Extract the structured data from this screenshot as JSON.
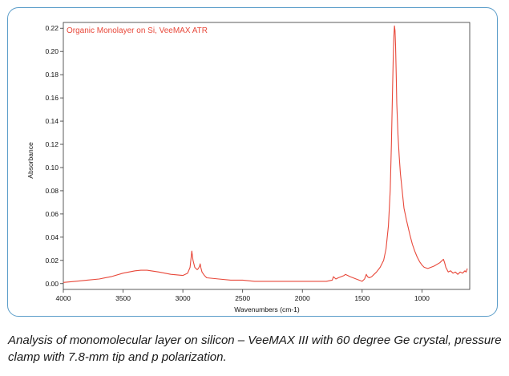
{
  "chart_data": {
    "type": "line",
    "title": "Organic Monolayer on Si, VeeMAX ATR",
    "xlabel": "Wavenumbers (cm-1)",
    "ylabel": "Absorbance",
    "xlim": [
      4000,
      600
    ],
    "ylim": [
      -0.005,
      0.225
    ],
    "x_ticks": [
      4000,
      3500,
      3000,
      2500,
      2000,
      1500,
      1000
    ],
    "y_ticks": [
      0.0,
      0.02,
      0.04,
      0.06,
      0.08,
      0.1,
      0.12,
      0.14,
      0.16,
      0.18,
      0.2,
      0.22
    ],
    "x_tick_labels": [
      "4000",
      "3500",
      "3000",
      "2500",
      "2000",
      "1500",
      "1000"
    ],
    "y_tick_labels": [
      "0.00",
      "0.02",
      "0.04",
      "0.06",
      "0.08",
      "0.10",
      "0.12",
      "0.14",
      "0.16",
      "0.18",
      "0.20",
      "0.22"
    ],
    "grid": false,
    "series": [
      {
        "name": "Organic Monolayer on Si, VeeMAX ATR",
        "color": "#e8483a",
        "x": [
          4000,
          3900,
          3800,
          3700,
          3600,
          3500,
          3400,
          3350,
          3300,
          3200,
          3100,
          3000,
          2960,
          2940,
          2925,
          2915,
          2900,
          2880,
          2870,
          2860,
          2855,
          2850,
          2840,
          2820,
          2800,
          2700,
          2600,
          2500,
          2400,
          2300,
          2200,
          2100,
          2000,
          1900,
          1800,
          1750,
          1740,
          1720,
          1700,
          1650,
          1640,
          1600,
          1550,
          1500,
          1480,
          1465,
          1455,
          1440,
          1420,
          1400,
          1380,
          1350,
          1320,
          1300,
          1280,
          1265,
          1255,
          1245,
          1240,
          1235,
          1230,
          1225,
          1220,
          1215,
          1210,
          1200,
          1190,
          1180,
          1170,
          1160,
          1150,
          1130,
          1100,
          1080,
          1060,
          1040,
          1020,
          1000,
          980,
          950,
          900,
          850,
          820,
          810,
          800,
          790,
          780,
          760,
          740,
          720,
          700,
          680,
          660,
          640,
          630,
          620
        ],
        "values": [
          0.001,
          0.002,
          0.003,
          0.004,
          0.006,
          0.009,
          0.011,
          0.0115,
          0.0115,
          0.01,
          0.008,
          0.007,
          0.009,
          0.014,
          0.028,
          0.02,
          0.014,
          0.012,
          0.013,
          0.015,
          0.017,
          0.014,
          0.01,
          0.007,
          0.005,
          0.004,
          0.003,
          0.003,
          0.002,
          0.002,
          0.002,
          0.002,
          0.002,
          0.002,
          0.002,
          0.003,
          0.006,
          0.004,
          0.005,
          0.007,
          0.008,
          0.006,
          0.004,
          0.002,
          0.004,
          0.008,
          0.006,
          0.005,
          0.006,
          0.008,
          0.01,
          0.014,
          0.02,
          0.03,
          0.05,
          0.08,
          0.12,
          0.17,
          0.195,
          0.212,
          0.222,
          0.218,
          0.205,
          0.18,
          0.155,
          0.128,
          0.11,
          0.095,
          0.085,
          0.075,
          0.065,
          0.055,
          0.042,
          0.034,
          0.028,
          0.023,
          0.019,
          0.016,
          0.014,
          0.013,
          0.015,
          0.018,
          0.021,
          0.018,
          0.014,
          0.012,
          0.01,
          0.011,
          0.009,
          0.01,
          0.008,
          0.01,
          0.009,
          0.011,
          0.01,
          0.013
        ]
      }
    ]
  },
  "caption": "Analysis of monomolecular layer on silicon – VeeMAX III with 60 degree Ge crystal, pressure clamp with 7.8-mm tip and p polarization."
}
